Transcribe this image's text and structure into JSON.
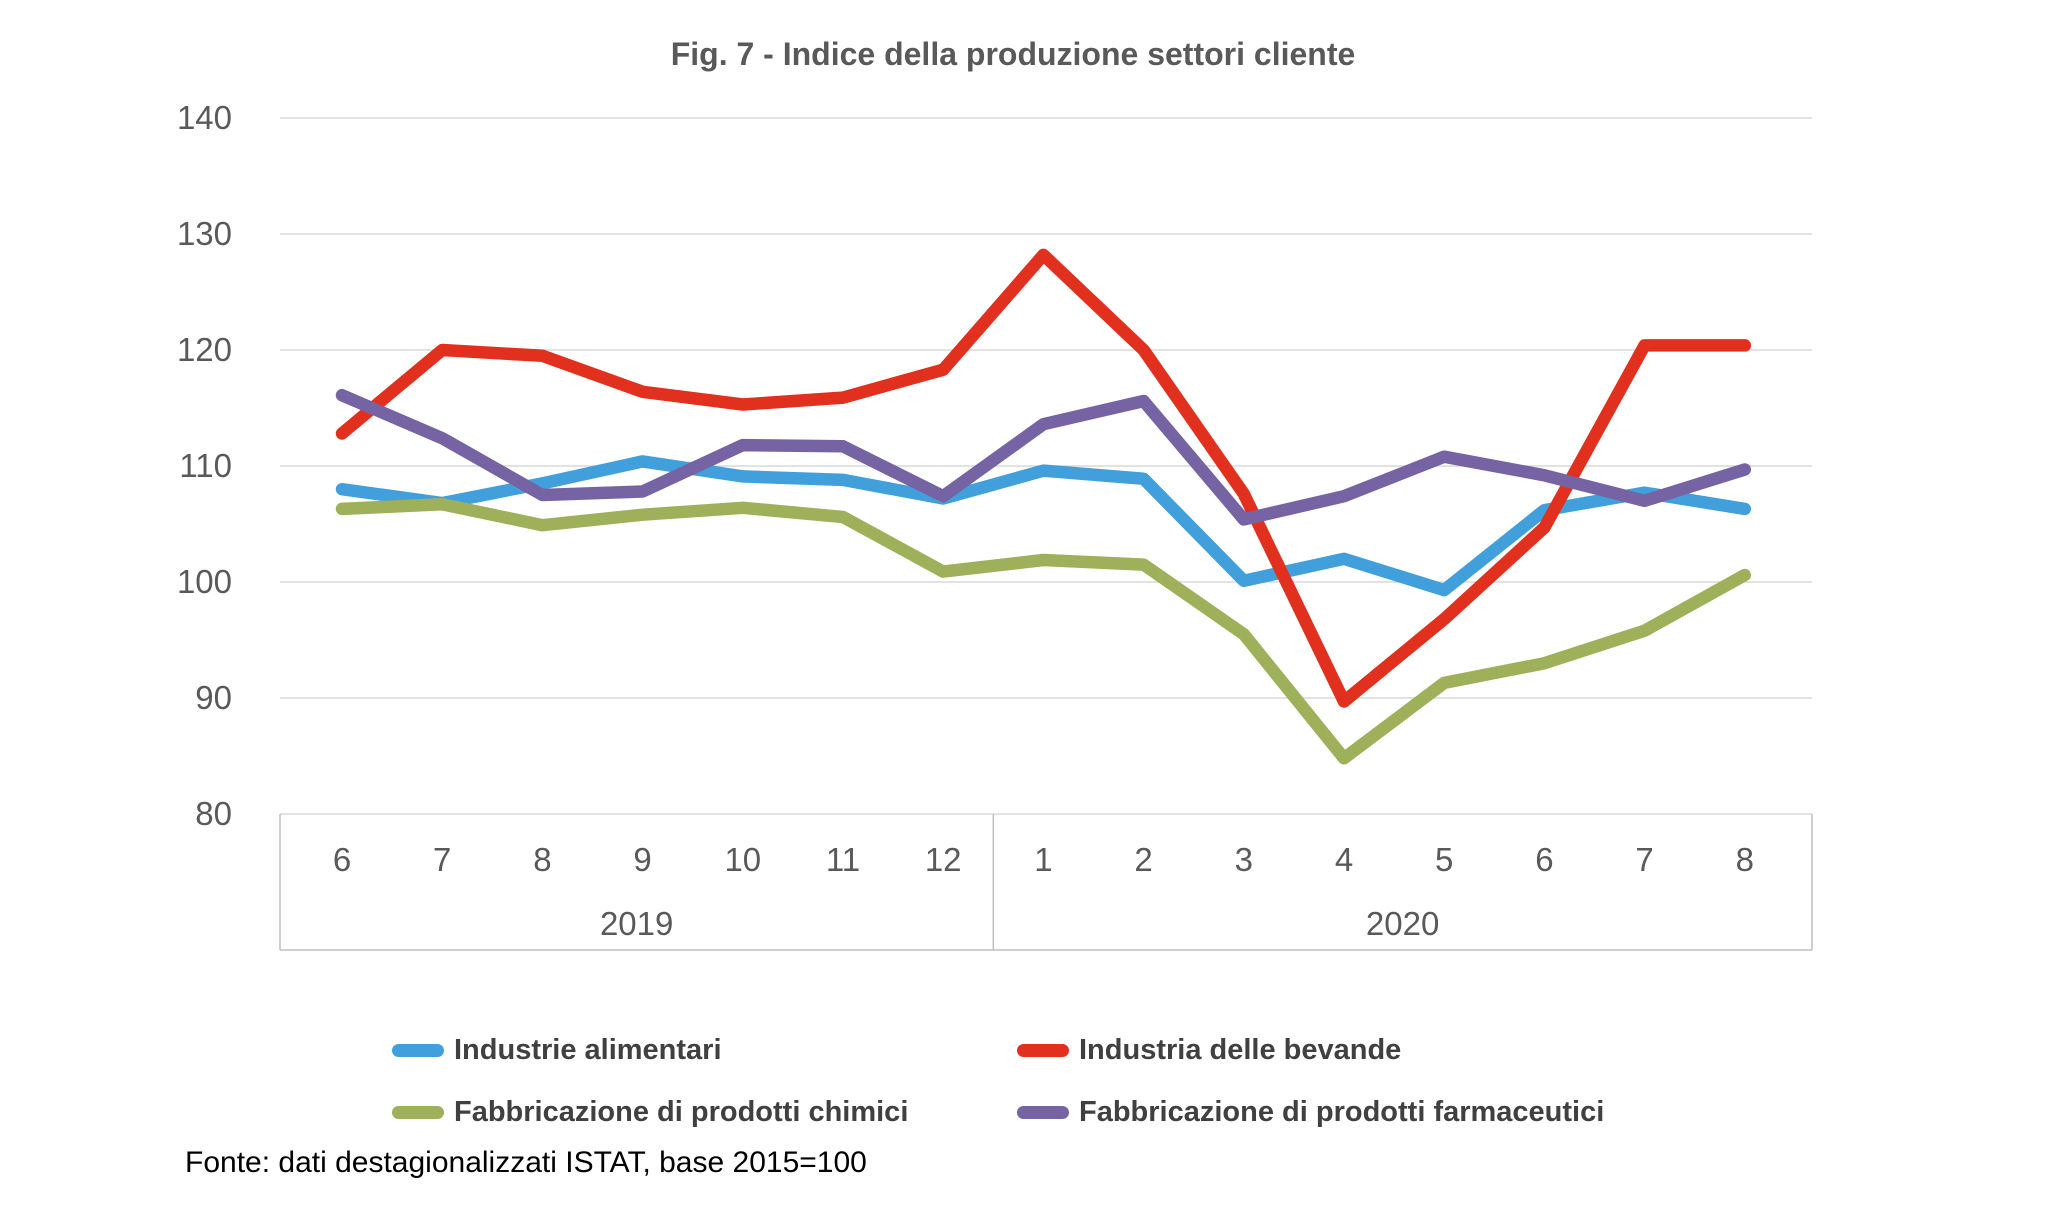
{
  "title": "Fig. 7 - Indice della produzione settori cliente",
  "source_note": "Fonte: dati destagionalizzati ISTAT, base 2015=100",
  "colors": {
    "gridline": "#D9D9D9",
    "axis_band": "#BFBFBF",
    "tick_text": "#595959",
    "title_text": "#595959",
    "legend_text": "#404040",
    "source_text": "#000000",
    "background": "#FFFFFF"
  },
  "chart_data": {
    "type": "line",
    "title": "Fig. 7 - Indice della produzione settori cliente",
    "xlabel": "",
    "ylabel": "",
    "ylim": [
      80,
      140
    ],
    "y_ticks": [
      140,
      130,
      120,
      110,
      100,
      90,
      80
    ],
    "grid": true,
    "legend_position": "bottom",
    "x_categories": [
      "6",
      "7",
      "8",
      "9",
      "10",
      "11",
      "12",
      "1",
      "2",
      "3",
      "4",
      "5",
      "6",
      "7",
      "8"
    ],
    "x_groups": [
      {
        "label": "2019",
        "span": 7
      },
      {
        "label": "2020",
        "span": 8
      }
    ],
    "series": [
      {
        "name": "Industrie alimentari",
        "color": "#41A0DB",
        "values": [
          108.0,
          106.8,
          108.5,
          110.4,
          109.1,
          108.8,
          107.2,
          109.6,
          108.9,
          100.1,
          102.0,
          99.3,
          106.2,
          107.7,
          106.3
        ]
      },
      {
        "name": "Industria delle bevande",
        "color": "#E2301E",
        "values": [
          112.8,
          120.0,
          119.5,
          116.4,
          115.3,
          115.9,
          118.3,
          128.2,
          120.0,
          107.6,
          89.7,
          96.8,
          104.7,
          120.4,
          120.4
        ]
      },
      {
        "name": "Fabbricazione di prodotti chimici",
        "color": "#9EB05A",
        "values": [
          106.3,
          106.7,
          104.9,
          105.8,
          106.4,
          105.6,
          100.9,
          101.9,
          101.5,
          95.5,
          84.8,
          91.3,
          93.0,
          95.8,
          100.6
        ]
      },
      {
        "name": "Fabbricazione di prodotti farmaceutici",
        "color": "#7663A3",
        "values": [
          116.1,
          112.4,
          107.5,
          107.8,
          111.8,
          111.7,
          107.4,
          113.6,
          115.6,
          105.4,
          107.4,
          110.8,
          109.2,
          107.0,
          109.7
        ]
      }
    ]
  }
}
